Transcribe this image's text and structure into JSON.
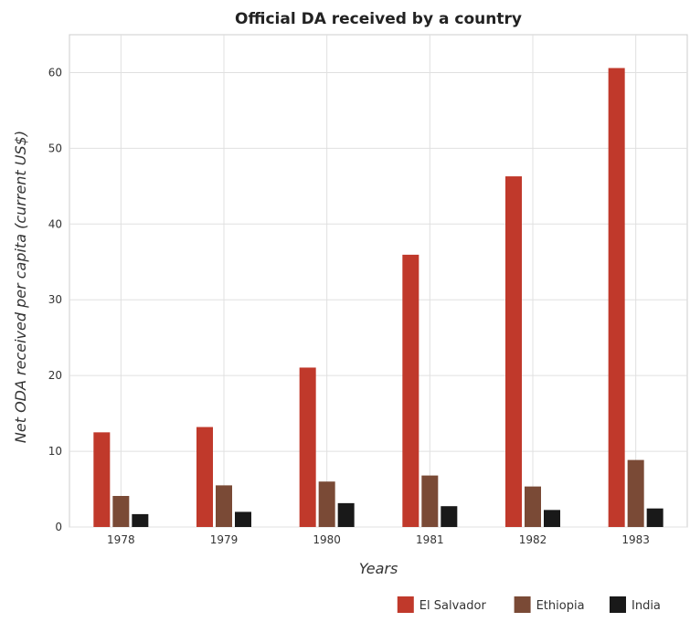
{
  "chart_data": {
    "type": "bar",
    "title": "Official DA received by a country",
    "xlabel": "Years",
    "ylabel": "Net ODA received per capita (current US$)",
    "categories": [
      "1978",
      "1979",
      "1980",
      "1981",
      "1982",
      "1983"
    ],
    "ylim": [
      0,
      65
    ],
    "yticks": [
      0,
      10,
      20,
      30,
      40,
      50,
      60
    ],
    "grid": true,
    "legend_position": "bottom-right",
    "series": [
      {
        "name": "El Salvador",
        "color": "#c0392b",
        "values": [
          12.5,
          13.2,
          21.05,
          35.95,
          46.3,
          60.6
        ]
      },
      {
        "name": "Ethiopia",
        "color": "#7a4a36",
        "values": [
          4.1,
          5.5,
          6.0,
          6.8,
          5.35,
          8.85
        ]
      },
      {
        "name": "India",
        "color": "#191919",
        "values": [
          1.7,
          2.0,
          3.15,
          2.75,
          2.25,
          2.45
        ]
      }
    ]
  }
}
